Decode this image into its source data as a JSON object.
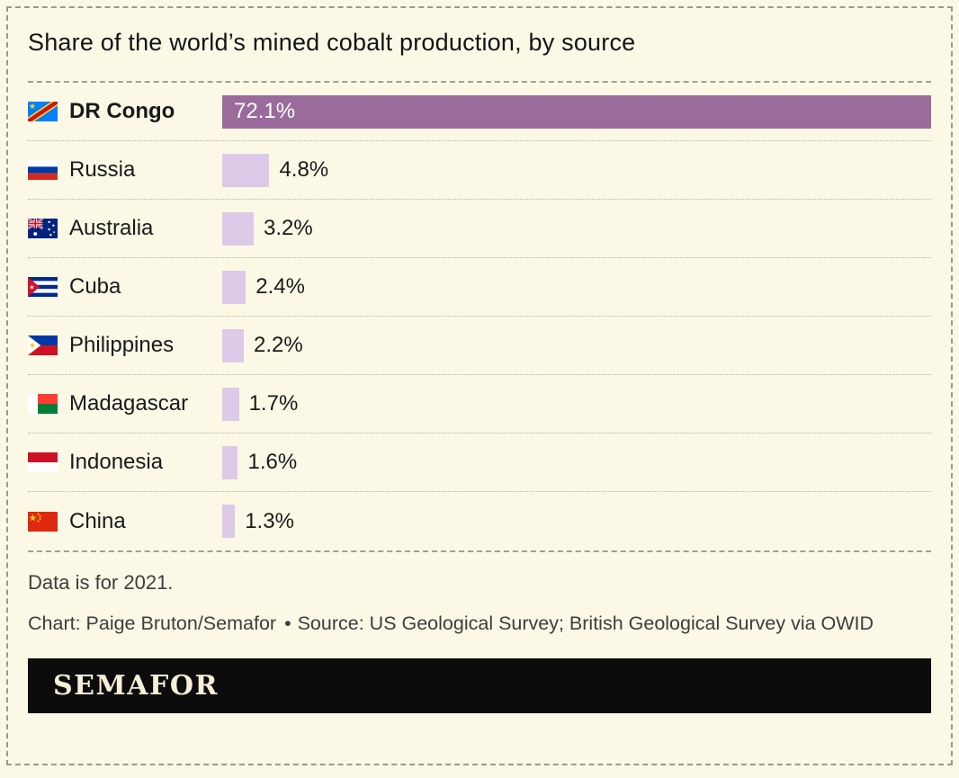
{
  "title": "Share of the world’s mined cobalt production, by source",
  "chart_data": {
    "type": "bar",
    "orientation": "horizontal",
    "title": "Share of the world’s mined cobalt production, by source",
    "categories": [
      "DR Congo",
      "Russia",
      "Australia",
      "Cuba",
      "Philippines",
      "Madagascar",
      "Indonesia",
      "China"
    ],
    "values": [
      72.1,
      4.8,
      3.2,
      2.4,
      2.2,
      1.7,
      1.6,
      1.3
    ],
    "value_labels": [
      "72.1%",
      "4.8%",
      "3.2%",
      "2.4%",
      "2.2%",
      "1.7%",
      "1.6%",
      "1.3%"
    ],
    "unit": "%",
    "max_value": 72.1,
    "xlim": [
      0,
      72.1
    ],
    "legend": false,
    "grid": false,
    "note": "Data is for 2021."
  },
  "rows": [
    {
      "label": "DR Congo",
      "value": "72.1%",
      "flag": "dr-congo-flag-icon"
    },
    {
      "label": "Russia",
      "value": "4.8%",
      "flag": "russia-flag-icon"
    },
    {
      "label": "Australia",
      "value": "3.2%",
      "flag": "australia-flag-icon"
    },
    {
      "label": "Cuba",
      "value": "2.4%",
      "flag": "cuba-flag-icon"
    },
    {
      "label": "Philippines",
      "value": "2.2%",
      "flag": "philippines-flag-icon"
    },
    {
      "label": "Madagascar",
      "value": "1.7%",
      "flag": "madagascar-flag-icon"
    },
    {
      "label": "Indonesia",
      "value": "1.6%",
      "flag": "indonesia-flag-icon"
    },
    {
      "label": "China",
      "value": "1.3%",
      "flag": "china-flag-icon"
    }
  ],
  "footer": {
    "note": "Data is for 2021.",
    "credit": "Chart: Paige Bruton/Semafor",
    "separator": "•",
    "source": "Source: US Geological Survey; British Geological Survey via OWID",
    "logo_text": "SEMAFOR"
  },
  "colors": {
    "background": "#fbf9e6",
    "bar_primary": "#9a6b9b",
    "bar_secondary": "#ddc9e8",
    "text": "#1a1a1a",
    "muted_text": "#3d3d3d",
    "logo_background": "#0c0c0c",
    "logo_text": "#f8efd8"
  }
}
